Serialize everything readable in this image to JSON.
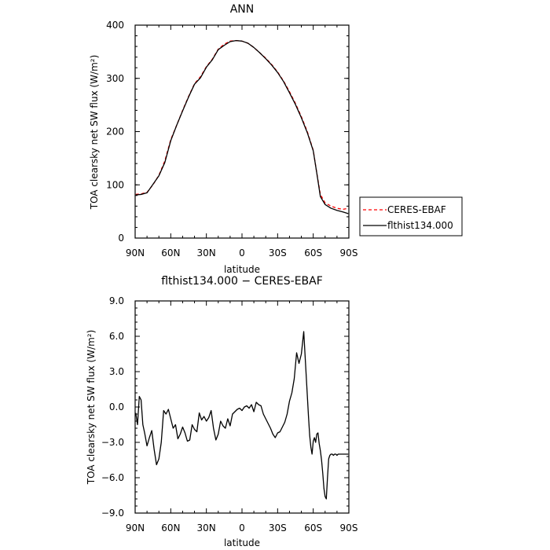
{
  "chart_data": [
    {
      "type": "line",
      "title": "ANN",
      "xlabel": "latitude",
      "ylabel": "TOA clearsky net SW flux (W/m²)",
      "x_ticks": [
        "90N",
        "60N",
        "30N",
        "0",
        "30S",
        "60S",
        "90S"
      ],
      "x_tick_values": [
        -90,
        -60,
        -30,
        0,
        30,
        60,
        90
      ],
      "y_ticks": [
        "0",
        "100",
        "200",
        "300",
        "400"
      ],
      "y_tick_values": [
        0,
        100,
        200,
        300,
        400
      ],
      "xlim": [
        -90,
        90
      ],
      "ylim": [
        0,
        400
      ],
      "legend_position": "right",
      "series": [
        {
          "name": "CERES-EBAF",
          "style": "dashed",
          "color": "#ff0000",
          "x": [
            -89.5,
            -85,
            -80,
            -75,
            -70,
            -65,
            -60,
            -55,
            -50,
            -45,
            -40,
            -35,
            -30,
            -25,
            -20,
            -15,
            -10,
            -5,
            0,
            5,
            10,
            15,
            20,
            25,
            30,
            35,
            40,
            45,
            50,
            55,
            60,
            63,
            66,
            70,
            75,
            80,
            85,
            89.5
          ],
          "y": [
            82,
            83,
            86,
            100,
            118,
            145,
            185,
            212,
            240,
            266,
            290,
            303,
            322,
            336,
            355,
            364,
            370,
            371,
            370,
            366,
            358,
            348,
            338,
            326,
            312,
            295,
            275,
            253,
            228,
            200,
            165,
            122,
            82,
            66,
            60,
            56,
            54,
            56
          ]
        },
        {
          "name": "flthist134.000",
          "style": "solid",
          "color": "#000000",
          "x": [
            -89.5,
            -85,
            -80,
            -75,
            -70,
            -65,
            -60,
            -55,
            -50,
            -45,
            -40,
            -35,
            -30,
            -25,
            -20,
            -15,
            -10,
            -5,
            0,
            5,
            10,
            15,
            20,
            25,
            30,
            35,
            40,
            45,
            50,
            55,
            60,
            63,
            66,
            70,
            75,
            80,
            85,
            89.5
          ],
          "y": [
            81,
            82,
            85,
            101,
            117,
            142,
            183,
            212,
            239,
            265,
            289,
            301,
            321,
            335,
            354,
            362,
            369,
            371,
            370,
            366,
            358,
            348,
            337,
            325,
            311,
            294,
            273,
            251,
            226,
            198,
            164,
            122,
            78,
            63,
            56,
            52,
            49,
            46
          ]
        }
      ]
    },
    {
      "type": "line",
      "title": "flthist134.000 − CERES-EBAF",
      "xlabel": "latitude",
      "ylabel": "TOA clearsky net SW flux (W/m²)",
      "x_ticks": [
        "90N",
        "60N",
        "30N",
        "0",
        "30S",
        "60S",
        "90S"
      ],
      "x_tick_values": [
        -90,
        -60,
        -30,
        0,
        30,
        60,
        90
      ],
      "y_ticks": [
        "9.0",
        "6.0",
        "3.0",
        "0.0",
        "−3.0",
        "−6.0",
        "−9.0"
      ],
      "y_tick_values": [
        9,
        6,
        3,
        0,
        -3,
        -6,
        -9
      ],
      "xlim": [
        -90,
        90
      ],
      "ylim": [
        -9,
        9
      ],
      "series": [
        {
          "name": "flthist134.000",
          "style": "solid",
          "color": "#000000",
          "x": [
            -89.5,
            -88,
            -86.5,
            -85,
            -83.5,
            -82,
            -80,
            -78,
            -76,
            -74,
            -72,
            -70,
            -68,
            -66,
            -64,
            -62,
            -60,
            -58,
            -56,
            -54,
            -52,
            -50,
            -48,
            -46,
            -44,
            -42,
            -40,
            -38,
            -36,
            -34,
            -32,
            -30,
            -28,
            -26,
            -24,
            -22,
            -20,
            -18,
            -16,
            -14,
            -12,
            -10,
            -8,
            -6,
            -4,
            -2,
            0,
            2,
            4,
            6,
            8,
            10,
            12,
            14,
            16,
            18,
            20,
            22,
            24,
            26,
            28,
            30,
            32,
            34,
            36,
            38,
            40,
            42,
            44,
            46,
            48,
            50,
            52,
            54,
            55,
            56,
            57,
            58,
            59,
            60,
            61,
            62,
            63,
            64,
            65,
            66,
            67,
            68,
            69,
            70,
            71,
            72,
            73,
            74,
            75,
            76,
            77,
            78,
            79,
            80,
            81,
            82,
            83,
            84,
            85,
            86,
            87,
            88,
            89,
            89.5
          ],
          "y": [
            -0.5,
            -1.5,
            0.9,
            0.6,
            -1.5,
            -2.2,
            -3.3,
            -2.6,
            -2.0,
            -3.6,
            -4.9,
            -4.4,
            -3.0,
            -0.3,
            -0.6,
            -0.2,
            -1.0,
            -1.8,
            -1.5,
            -2.7,
            -2.3,
            -1.7,
            -2.2,
            -2.9,
            -2.8,
            -1.5,
            -1.9,
            -2.1,
            -0.5,
            -1.1,
            -0.8,
            -1.2,
            -0.9,
            -0.3,
            -1.8,
            -2.8,
            -2.3,
            -1.2,
            -1.6,
            -1.8,
            -1.0,
            -1.6,
            -0.6,
            -0.4,
            -0.2,
            -0.1,
            -0.3,
            0.0,
            0.1,
            -0.1,
            0.2,
            -0.4,
            0.4,
            0.2,
            0.1,
            -0.6,
            -1.0,
            -1.4,
            -1.8,
            -2.3,
            -2.6,
            -2.2,
            -2.1,
            -1.7,
            -1.3,
            -0.6,
            0.5,
            1.2,
            2.4,
            4.6,
            3.7,
            4.5,
            6.4,
            2.8,
            1.0,
            -0.8,
            -2.4,
            -3.4,
            -4.0,
            -2.9,
            -2.6,
            -3.0,
            -2.3,
            -2.2,
            -3.1,
            -3.7,
            -4.5,
            -5.6,
            -6.9,
            -7.6,
            -7.8,
            -6.0,
            -4.4,
            -4.1,
            -4.0,
            -4.0,
            -4.1,
            -4.0,
            -4.0,
            -4.1,
            -4.0,
            -4.0,
            -4.0,
            -4.0,
            -4.0,
            -4.0,
            -4.0,
            -4.0,
            -4.0,
            -4.0
          ],
          "y_note": ""
        }
      ]
    }
  ]
}
